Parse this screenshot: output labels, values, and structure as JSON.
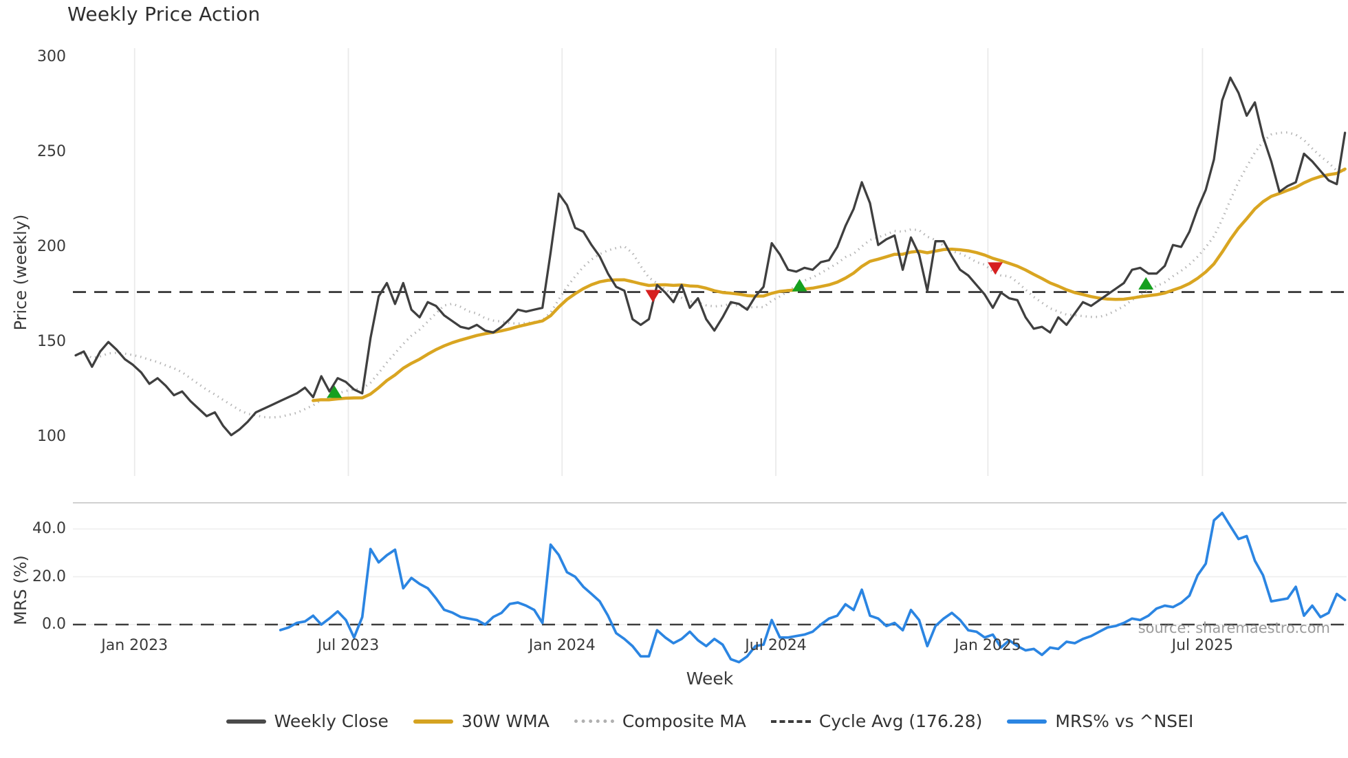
{
  "title": "Weekly Price Action",
  "source_note": "source: sharemaestro.com",
  "axes": {
    "price_ylabel": "Price (weekly)",
    "mrs_ylabel": "MRS (%)",
    "xlabel": "Week",
    "price_ytick_labels": [
      "300",
      "250",
      "200",
      "150",
      "100"
    ],
    "mrs_ytick_labels": [
      "40.0",
      "20.0",
      "0.0"
    ],
    "xtick_labels": [
      "Jan 2023",
      "Jul 2023",
      "Jan 2024",
      "Jul 2024",
      "Jan 2025",
      "Jul 2025"
    ]
  },
  "legend": {
    "items": [
      {
        "label": "Weekly Close"
      },
      {
        "label": "30W WMA"
      },
      {
        "label": "Composite MA"
      },
      {
        "label": "Cycle Avg (176.28)"
      },
      {
        "label": "MRS% vs ^NSEI"
      }
    ]
  },
  "colors": {
    "weekly_close": "#3f3f3f",
    "wma_30w": "#d9a521",
    "composite_ma": "#b4b4b4",
    "cycle_avg": "#3d3d3d",
    "mrs_line": "#2b85e2",
    "buy_marker": "#16a01f",
    "sell_marker": "#d62020",
    "grid": "#eaeaea",
    "mrs_grid": "#ededed",
    "mrs_top_spine": "#c9c9c9"
  },
  "chart_data": {
    "type": "line",
    "panels": [
      "price",
      "mrs"
    ],
    "x_unit": "week_index",
    "n_weeks": 156,
    "cycle_avg": 176.28,
    "price_yticks": [
      300,
      250,
      200,
      150,
      100
    ],
    "price_ylim": [
      95,
      305
    ],
    "mrs_yticks": [
      40,
      20,
      0
    ],
    "mrs_ylim": [
      -18,
      51
    ],
    "xticks": [
      {
        "week": 7.2,
        "label": "Jan 2023"
      },
      {
        "week": 33.3,
        "label": "Jul 2023"
      },
      {
        "week": 59.4,
        "label": "Jan 2024"
      },
      {
        "week": 85.5,
        "label": "Jul 2024"
      },
      {
        "week": 111.4,
        "label": "Jan 2025"
      },
      {
        "week": 137.6,
        "label": "Jul 2025"
      }
    ],
    "wma_window": 30,
    "composite_window": 10,
    "weekly_close": [
      143,
      145,
      137,
      145,
      150,
      146,
      141,
      138,
      134,
      128,
      131,
      127,
      122,
      124,
      119,
      115,
      111,
      113,
      106,
      101,
      104,
      108,
      113,
      115,
      117,
      119,
      121,
      123,
      126,
      121,
      132,
      124,
      131,
      129,
      125,
      123,
      152,
      174,
      181,
      170,
      181,
      167,
      163,
      171,
      169,
      164,
      161,
      158,
      157,
      159,
      156,
      155,
      158,
      162,
      167,
      166,
      167,
      168,
      197,
      228,
      222,
      210,
      208,
      201,
      195,
      186,
      179,
      177,
      162,
      159,
      162,
      180,
      176,
      171,
      180,
      168,
      173,
      162,
      156,
      163,
      171,
      170,
      167,
      174,
      179,
      202,
      196,
      188,
      187,
      189,
      188,
      192,
      193,
      200,
      211,
      220,
      234,
      223,
      201,
      204,
      206,
      188,
      205,
      196,
      177,
      203,
      203,
      195,
      188,
      185,
      180,
      175,
      168,
      176,
      173,
      172,
      163,
      157,
      158,
      155,
      163,
      159,
      165,
      171,
      169,
      172,
      175,
      178,
      181,
      188,
      189,
      186,
      186,
      190,
      201,
      200,
      208,
      220,
      230,
      246,
      277,
      289,
      281,
      269,
      276,
      258,
      245,
      229,
      232,
      234,
      249,
      245,
      240,
      235,
      233,
      260
    ],
    "mrs_pct": [
      null,
      null,
      null,
      null,
      null,
      null,
      null,
      null,
      null,
      null,
      null,
      null,
      null,
      null,
      null,
      null,
      null,
      null,
      null,
      null,
      null,
      null,
      null,
      null,
      null,
      -2.3,
      -1.2,
      0.7,
      1.3,
      3.7,
      0,
      2.6,
      5.5,
      1.9,
      -5.4,
      3.1,
      31.6,
      26,
      29,
      31.3,
      15.2,
      19.5,
      17,
      15.2,
      11,
      6.2,
      5,
      3.2,
      2.5,
      1.9,
      0,
      3.2,
      4.9,
      8.6,
      9.2,
      7.9,
      6.1,
      0.7,
      33.4,
      29.1,
      21.9,
      20,
      15.8,
      12.8,
      9.7,
      3.7,
      -3.6,
      -6,
      -9,
      -13.3,
      -13.3,
      -2.4,
      -5.4,
      -7.8,
      -6,
      -3,
      -6.6,
      -9,
      -6,
      -8.4,
      -14.5,
      -15.7,
      -13.3,
      -9,
      -8.4,
      1.9,
      -5.4,
      -5.4,
      -4.8,
      -4.2,
      -3,
      0,
      2.5,
      3.7,
      8.5,
      6.1,
      14.6,
      3.7,
      2.5,
      -0.6,
      0.7,
      -2.4,
      6.1,
      1.9,
      -9,
      -0.6,
      2.5,
      4.9,
      1.9,
      -2.4,
      -3,
      -5.4,
      -4.2,
      -9.6,
      -6.6,
      -9,
      -10.8,
      -10.2,
      -12.7,
      -9.6,
      -10.2,
      -7.2,
      -7.8,
      -6,
      -4.8,
      -3,
      -1.2,
      -0.6,
      0.7,
      2.5,
      1.9,
      3.7,
      6.7,
      7.9,
      7.3,
      9.1,
      12.1,
      20.6,
      25.5,
      43.6,
      46.7,
      41.2,
      35.8,
      37,
      26.7,
      20.6,
      9.7,
      10.3,
      10.9,
      15.8,
      3.7,
      7.9,
      3.1,
      4.9,
      12.8,
      10.3
    ],
    "buy_signals": [
      {
        "week": 31.6,
        "price": 123.5
      },
      {
        "week": 88.4,
        "price": 179.5
      },
      {
        "week": 130.7,
        "price": 180.5
      }
    ],
    "sell_signals": [
      {
        "week": 70.5,
        "price": 174.5
      },
      {
        "week": 112.3,
        "price": 189
      }
    ]
  }
}
